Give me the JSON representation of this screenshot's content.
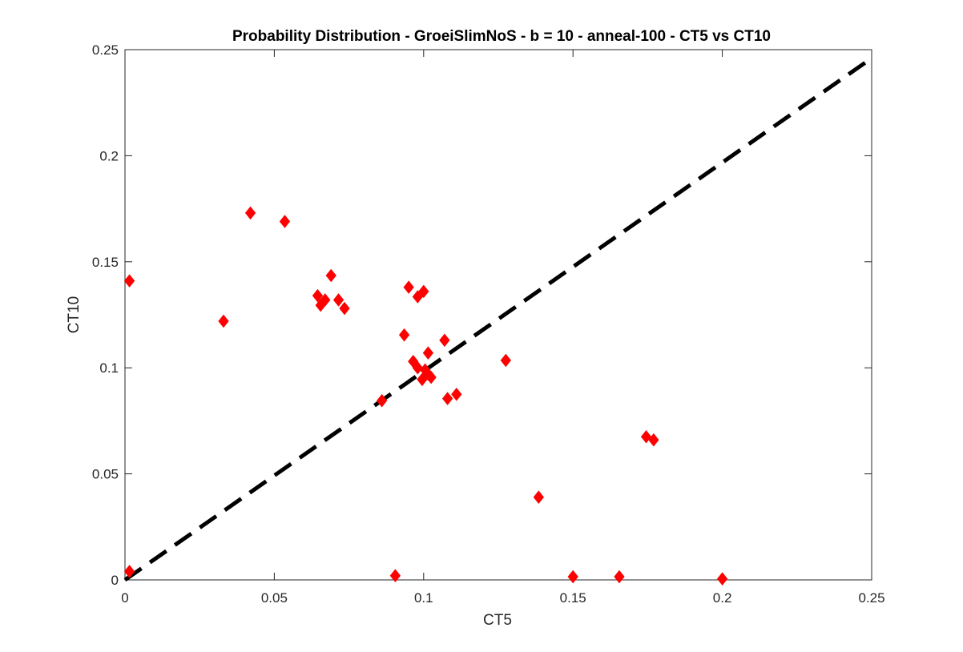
{
  "chart_data": {
    "type": "scatter",
    "title": "Probability Distribution - GroeiSlimNoS - b = 10 - anneal-100 - CT5 vs CT10",
    "xlabel": "CT5",
    "ylabel": "CT10",
    "xlim": [
      0,
      0.25
    ],
    "ylim": [
      0,
      0.25
    ],
    "xticks": [
      0,
      0.05,
      0.1,
      0.15,
      0.2,
      0.25
    ],
    "yticks": [
      0,
      0.05,
      0.1,
      0.15,
      0.2,
      0.25
    ],
    "xtick_labels": [
      "0",
      "0.05",
      "0.1",
      "0.15",
      "0.2",
      "0.25"
    ],
    "ytick_labels": [
      "0",
      "0.05",
      "0.1",
      "0.15",
      "0.2",
      "0.25"
    ],
    "grid": false,
    "marker": "diamond",
    "marker_color": "#ff0000",
    "reference_line": {
      "style": "dashed",
      "color": "#000000",
      "x": [
        0,
        0.25
      ],
      "y": [
        0,
        0.246
      ]
    },
    "points": [
      [
        0.0015,
        0.141
      ],
      [
        0.0015,
        0.004
      ],
      [
        0.033,
        0.122
      ],
      [
        0.042,
        0.173
      ],
      [
        0.0535,
        0.169
      ],
      [
        0.0645,
        0.134
      ],
      [
        0.0655,
        0.1295
      ],
      [
        0.067,
        0.132
      ],
      [
        0.069,
        0.1435
      ],
      [
        0.0715,
        0.132
      ],
      [
        0.0735,
        0.128
      ],
      [
        0.086,
        0.0845
      ],
      [
        0.0905,
        0.002
      ],
      [
        0.0935,
        0.1155
      ],
      [
        0.095,
        0.138
      ],
      [
        0.0965,
        0.103
      ],
      [
        0.098,
        0.1335
      ],
      [
        0.098,
        0.1
      ],
      [
        0.0995,
        0.0945
      ],
      [
        0.1,
        0.136
      ],
      [
        0.1005,
        0.099
      ],
      [
        0.1015,
        0.097
      ],
      [
        0.1015,
        0.107
      ],
      [
        0.1025,
        0.0955
      ],
      [
        0.107,
        0.113
      ],
      [
        0.108,
        0.0855
      ],
      [
        0.111,
        0.0875
      ],
      [
        0.1275,
        0.1035
      ],
      [
        0.1385,
        0.039
      ],
      [
        0.15,
        0.0015
      ],
      [
        0.1655,
        0.0015
      ],
      [
        0.1745,
        0.0675
      ],
      [
        0.177,
        0.066
      ],
      [
        0.2,
        0.0005
      ]
    ]
  }
}
